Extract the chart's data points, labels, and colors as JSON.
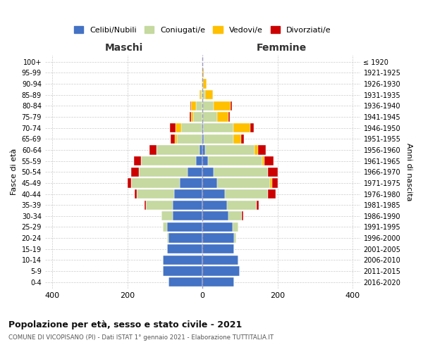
{
  "age_groups": [
    "0-4",
    "5-9",
    "10-14",
    "15-19",
    "20-24",
    "25-29",
    "30-34",
    "35-39",
    "40-44",
    "45-49",
    "50-54",
    "55-59",
    "60-64",
    "65-69",
    "70-74",
    "75-79",
    "80-84",
    "85-89",
    "90-94",
    "95-99",
    "100+"
  ],
  "birth_years": [
    "2016-2020",
    "2011-2015",
    "2006-2010",
    "2001-2005",
    "1996-2000",
    "1991-1995",
    "1986-1990",
    "1981-1985",
    "1976-1980",
    "1971-1975",
    "1966-1970",
    "1961-1965",
    "1956-1960",
    "1951-1955",
    "1946-1950",
    "1941-1945",
    "1936-1940",
    "1931-1935",
    "1926-1930",
    "1921-1925",
    "≤ 1920"
  ],
  "males": {
    "celibi": [
      90,
      105,
      105,
      95,
      90,
      95,
      80,
      80,
      75,
      60,
      40,
      18,
      8,
      3,
      2,
      0,
      0,
      0,
      0,
      0,
      0
    ],
    "coniugati": [
      0,
      0,
      0,
      0,
      5,
      10,
      30,
      70,
      100,
      130,
      130,
      145,
      115,
      65,
      55,
      25,
      18,
      5,
      2,
      0,
      0
    ],
    "vedovi": [
      0,
      0,
      0,
      0,
      0,
      0,
      0,
      0,
      0,
      0,
      0,
      0,
      0,
      5,
      15,
      5,
      12,
      3,
      0,
      0,
      0
    ],
    "divorziati": [
      0,
      0,
      0,
      0,
      0,
      0,
      0,
      5,
      5,
      10,
      20,
      20,
      18,
      12,
      15,
      5,
      3,
      0,
      0,
      0,
      0
    ]
  },
  "females": {
    "nubili": [
      85,
      100,
      95,
      85,
      85,
      80,
      70,
      65,
      60,
      40,
      30,
      15,
      8,
      3,
      2,
      0,
      0,
      0,
      0,
      0,
      0
    ],
    "coniugate": [
      0,
      0,
      0,
      0,
      5,
      15,
      35,
      80,
      115,
      140,
      145,
      145,
      130,
      80,
      80,
      40,
      30,
      8,
      2,
      0,
      0
    ],
    "vedove": [
      0,
      0,
      0,
      0,
      0,
      0,
      0,
      0,
      0,
      5,
      0,
      5,
      10,
      20,
      45,
      30,
      45,
      20,
      8,
      3,
      0
    ],
    "divorziate": [
      0,
      0,
      0,
      0,
      0,
      0,
      3,
      5,
      20,
      15,
      25,
      25,
      20,
      8,
      10,
      3,
      3,
      0,
      0,
      0,
      0
    ]
  },
  "colors": {
    "celibi_nubili": "#4472c4",
    "coniugati": "#c5d9a0",
    "vedovi": "#ffc000",
    "divorziati": "#cc0000"
  },
  "title": "Popolazione per età, sesso e stato civile - 2021",
  "subtitle": "COMUNE DI VICOPISANO (PI) - Dati ISTAT 1° gennaio 2021 - Elaborazione TUTTITALIA.IT",
  "xlabel_left": "Maschi",
  "xlabel_right": "Femmine",
  "ylabel_left": "Fasce di età",
  "ylabel_right": "Anni di nascita",
  "legend_labels": [
    "Celibi/Nubili",
    "Coniugati/e",
    "Vedovi/e",
    "Divorziati/e"
  ],
  "xlim": 420,
  "background_color": "#ffffff",
  "grid_color": "#cccccc"
}
